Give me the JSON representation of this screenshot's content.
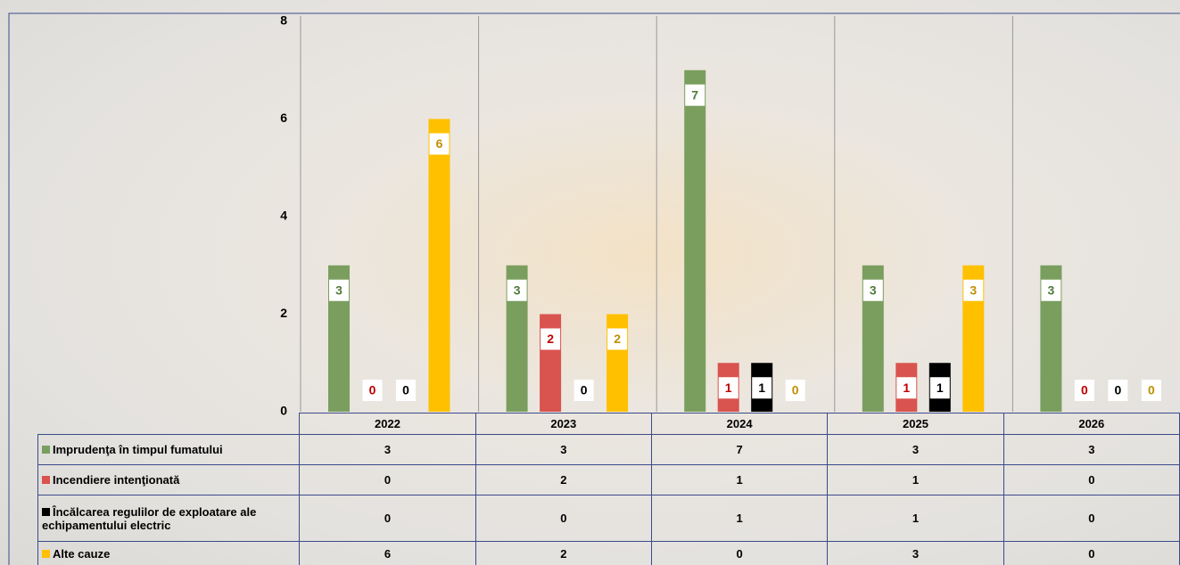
{
  "chart_data": {
    "type": "bar",
    "categories": [
      "2022",
      "2023",
      "2024",
      "2025",
      "2026"
    ],
    "series": [
      {
        "name": "Imprudenţa în timpul fumatului",
        "color": "#7a9e5e",
        "values": [
          3,
          3,
          7,
          3,
          3
        ]
      },
      {
        "name": "Incendiere intenţionată",
        "color": "#d9534f",
        "values": [
          0,
          2,
          1,
          1,
          0
        ]
      },
      {
        "name": "Încălcarea regulilor de exploatare ale echipamentului electric",
        "color": "#000000",
        "values": [
          0,
          0,
          1,
          1,
          0
        ]
      },
      {
        "name": "Alte cauze",
        "color": "#ffc000",
        "values": [
          6,
          2,
          0,
          3,
          0
        ]
      }
    ],
    "ylim": [
      0,
      8
    ],
    "yticks": [
      0,
      2,
      4,
      6,
      8
    ],
    "grid": true
  }
}
